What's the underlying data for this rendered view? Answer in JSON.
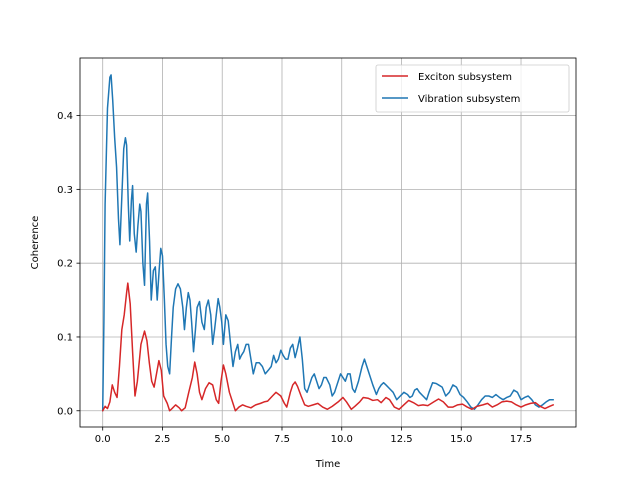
{
  "chart_data": {
    "type": "line",
    "title": "",
    "xlabel": "Time",
    "ylabel": "Coherence",
    "xlim": [
      -0.95,
      19.8
    ],
    "ylim": [
      -0.022,
      0.478
    ],
    "xticks": [
      0.0,
      2.5,
      5.0,
      7.5,
      10.0,
      12.5,
      15.0,
      17.5
    ],
    "xtick_labels": [
      "0.0",
      "2.5",
      "5.0",
      "7.5",
      "10.0",
      "12.5",
      "15.0",
      "17.5"
    ],
    "yticks": [
      0.0,
      0.1,
      0.2,
      0.3,
      0.4
    ],
    "ytick_labels": [
      "0.0",
      "0.1",
      "0.2",
      "0.3",
      "0.4"
    ],
    "grid": true,
    "legend_position": "top-right",
    "series": [
      {
        "name": "Exciton subsystem",
        "color": "#d62728",
        "points": [
          [
            0.0,
            0.0
          ],
          [
            0.1,
            0.006
          ],
          [
            0.2,
            0.003
          ],
          [
            0.3,
            0.012
          ],
          [
            0.4,
            0.035
          ],
          [
            0.5,
            0.025
          ],
          [
            0.6,
            0.018
          ],
          [
            0.7,
            0.06
          ],
          [
            0.8,
            0.11
          ],
          [
            0.9,
            0.13
          ],
          [
            1.0,
            0.16
          ],
          [
            1.05,
            0.173
          ],
          [
            1.15,
            0.145
          ],
          [
            1.25,
            0.08
          ],
          [
            1.35,
            0.02
          ],
          [
            1.45,
            0.04
          ],
          [
            1.6,
            0.09
          ],
          [
            1.75,
            0.108
          ],
          [
            1.85,
            0.095
          ],
          [
            1.95,
            0.065
          ],
          [
            2.05,
            0.04
          ],
          [
            2.15,
            0.032
          ],
          [
            2.25,
            0.05
          ],
          [
            2.35,
            0.068
          ],
          [
            2.45,
            0.055
          ],
          [
            2.55,
            0.02
          ],
          [
            2.7,
            0.01
          ],
          [
            2.8,
            0.0
          ],
          [
            2.9,
            0.003
          ],
          [
            3.05,
            0.008
          ],
          [
            3.2,
            0.004
          ],
          [
            3.3,
            0.0
          ],
          [
            3.45,
            0.004
          ],
          [
            3.6,
            0.025
          ],
          [
            3.75,
            0.045
          ],
          [
            3.85,
            0.066
          ],
          [
            3.95,
            0.05
          ],
          [
            4.05,
            0.025
          ],
          [
            4.15,
            0.015
          ],
          [
            4.3,
            0.03
          ],
          [
            4.45,
            0.038
          ],
          [
            4.6,
            0.035
          ],
          [
            4.75,
            0.015
          ],
          [
            4.85,
            0.01
          ],
          [
            4.95,
            0.04
          ],
          [
            5.05,
            0.062
          ],
          [
            5.15,
            0.05
          ],
          [
            5.3,
            0.025
          ],
          [
            5.45,
            0.01
          ],
          [
            5.55,
            0.0
          ],
          [
            5.7,
            0.005
          ],
          [
            5.85,
            0.008
          ],
          [
            6.0,
            0.006
          ],
          [
            6.2,
            0.004
          ],
          [
            6.4,
            0.008
          ],
          [
            6.6,
            0.01
          ],
          [
            6.75,
            0.012
          ],
          [
            6.9,
            0.013
          ],
          [
            7.1,
            0.02
          ],
          [
            7.25,
            0.025
          ],
          [
            7.45,
            0.02
          ],
          [
            7.6,
            0.01
          ],
          [
            7.7,
            0.005
          ],
          [
            7.85,
            0.025
          ],
          [
            7.95,
            0.035
          ],
          [
            8.05,
            0.039
          ],
          [
            8.15,
            0.033
          ],
          [
            8.3,
            0.02
          ],
          [
            8.45,
            0.008
          ],
          [
            8.6,
            0.006
          ],
          [
            8.8,
            0.008
          ],
          [
            9.0,
            0.01
          ],
          [
            9.2,
            0.005
          ],
          [
            9.4,
            0.002
          ],
          [
            9.6,
            0.006
          ],
          [
            9.85,
            0.012
          ],
          [
            10.05,
            0.018
          ],
          [
            10.2,
            0.012
          ],
          [
            10.4,
            0.002
          ],
          [
            10.55,
            0.006
          ],
          [
            10.75,
            0.012
          ],
          [
            10.9,
            0.018
          ],
          [
            11.1,
            0.017
          ],
          [
            11.3,
            0.014
          ],
          [
            11.5,
            0.015
          ],
          [
            11.65,
            0.011
          ],
          [
            11.85,
            0.018
          ],
          [
            12.0,
            0.015
          ],
          [
            12.2,
            0.005
          ],
          [
            12.4,
            0.002
          ],
          [
            12.6,
            0.008
          ],
          [
            12.8,
            0.014
          ],
          [
            13.0,
            0.011
          ],
          [
            13.2,
            0.007
          ],
          [
            13.4,
            0.008
          ],
          [
            13.6,
            0.007
          ],
          [
            13.85,
            0.012
          ],
          [
            14.05,
            0.016
          ],
          [
            14.25,
            0.012
          ],
          [
            14.45,
            0.005
          ],
          [
            14.65,
            0.005
          ],
          [
            14.85,
            0.008
          ],
          [
            15.05,
            0.009
          ],
          [
            15.25,
            0.005
          ],
          [
            15.45,
            0.002
          ],
          [
            15.65,
            0.006
          ],
          [
            15.9,
            0.008
          ],
          [
            16.1,
            0.01
          ],
          [
            16.3,
            0.005
          ],
          [
            16.5,
            0.008
          ],
          [
            16.7,
            0.012
          ],
          [
            16.9,
            0.013
          ],
          [
            17.1,
            0.012
          ],
          [
            17.3,
            0.008
          ],
          [
            17.5,
            0.005
          ],
          [
            17.7,
            0.008
          ],
          [
            17.9,
            0.01
          ],
          [
            18.1,
            0.011
          ],
          [
            18.3,
            0.006
          ],
          [
            18.5,
            0.003
          ],
          [
            18.7,
            0.006
          ],
          [
            18.85,
            0.008
          ]
        ]
      },
      {
        "name": "Vibration subsystem",
        "color": "#1f77b4",
        "points": [
          [
            0.0,
            0.0
          ],
          [
            0.05,
            0.12
          ],
          [
            0.1,
            0.28
          ],
          [
            0.2,
            0.41
          ],
          [
            0.3,
            0.452
          ],
          [
            0.35,
            0.455
          ],
          [
            0.42,
            0.42
          ],
          [
            0.5,
            0.37
          ],
          [
            0.58,
            0.33
          ],
          [
            0.66,
            0.26
          ],
          [
            0.72,
            0.225
          ],
          [
            0.8,
            0.29
          ],
          [
            0.88,
            0.355
          ],
          [
            0.95,
            0.37
          ],
          [
            1.0,
            0.36
          ],
          [
            1.07,
            0.28
          ],
          [
            1.13,
            0.23
          ],
          [
            1.2,
            0.285
          ],
          [
            1.25,
            0.305
          ],
          [
            1.32,
            0.24
          ],
          [
            1.4,
            0.215
          ],
          [
            1.47,
            0.25
          ],
          [
            1.55,
            0.28
          ],
          [
            1.6,
            0.27
          ],
          [
            1.68,
            0.2
          ],
          [
            1.75,
            0.17
          ],
          [
            1.83,
            0.28
          ],
          [
            1.88,
            0.295
          ],
          [
            1.96,
            0.23
          ],
          [
            2.03,
            0.15
          ],
          [
            2.12,
            0.19
          ],
          [
            2.2,
            0.195
          ],
          [
            2.28,
            0.15
          ],
          [
            2.36,
            0.19
          ],
          [
            2.43,
            0.22
          ],
          [
            2.5,
            0.21
          ],
          [
            2.58,
            0.15
          ],
          [
            2.65,
            0.09
          ],
          [
            2.72,
            0.06
          ],
          [
            2.8,
            0.05
          ],
          [
            2.88,
            0.1
          ],
          [
            2.95,
            0.14
          ],
          [
            3.05,
            0.165
          ],
          [
            3.15,
            0.172
          ],
          [
            3.25,
            0.165
          ],
          [
            3.35,
            0.14
          ],
          [
            3.42,
            0.11
          ],
          [
            3.5,
            0.14
          ],
          [
            3.58,
            0.16
          ],
          [
            3.65,
            0.15
          ],
          [
            3.72,
            0.12
          ],
          [
            3.8,
            0.08
          ],
          [
            3.88,
            0.11
          ],
          [
            3.95,
            0.14
          ],
          [
            4.05,
            0.148
          ],
          [
            4.15,
            0.12
          ],
          [
            4.25,
            0.11
          ],
          [
            4.33,
            0.14
          ],
          [
            4.42,
            0.15
          ],
          [
            4.52,
            0.13
          ],
          [
            4.6,
            0.09
          ],
          [
            4.68,
            0.11
          ],
          [
            4.75,
            0.13
          ],
          [
            4.83,
            0.152
          ],
          [
            4.9,
            0.14
          ],
          [
            4.98,
            0.12
          ],
          [
            5.05,
            0.09
          ],
          [
            5.15,
            0.13
          ],
          [
            5.25,
            0.122
          ],
          [
            5.35,
            0.09
          ],
          [
            5.45,
            0.06
          ],
          [
            5.55,
            0.08
          ],
          [
            5.65,
            0.09
          ],
          [
            5.73,
            0.07
          ],
          [
            5.8,
            0.075
          ],
          [
            5.9,
            0.08
          ],
          [
            6.0,
            0.09
          ],
          [
            6.1,
            0.09
          ],
          [
            6.2,
            0.07
          ],
          [
            6.3,
            0.05
          ],
          [
            6.42,
            0.065
          ],
          [
            6.55,
            0.065
          ],
          [
            6.68,
            0.06
          ],
          [
            6.8,
            0.05
          ],
          [
            6.93,
            0.055
          ],
          [
            7.05,
            0.06
          ],
          [
            7.15,
            0.075
          ],
          [
            7.25,
            0.065
          ],
          [
            7.35,
            0.07
          ],
          [
            7.45,
            0.082
          ],
          [
            7.55,
            0.075
          ],
          [
            7.65,
            0.07
          ],
          [
            7.75,
            0.07
          ],
          [
            7.85,
            0.085
          ],
          [
            7.95,
            0.09
          ],
          [
            8.05,
            0.072
          ],
          [
            8.15,
            0.085
          ],
          [
            8.25,
            0.1
          ],
          [
            8.35,
            0.07
          ],
          [
            8.45,
            0.03
          ],
          [
            8.55,
            0.025
          ],
          [
            8.65,
            0.035
          ],
          [
            8.75,
            0.045
          ],
          [
            8.85,
            0.05
          ],
          [
            8.95,
            0.04
          ],
          [
            9.05,
            0.03
          ],
          [
            9.15,
            0.035
          ],
          [
            9.25,
            0.045
          ],
          [
            9.35,
            0.045
          ],
          [
            9.5,
            0.035
          ],
          [
            9.6,
            0.02
          ],
          [
            9.7,
            0.025
          ],
          [
            9.85,
            0.04
          ],
          [
            9.95,
            0.05
          ],
          [
            10.05,
            0.045
          ],
          [
            10.15,
            0.04
          ],
          [
            10.25,
            0.05
          ],
          [
            10.35,
            0.05
          ],
          [
            10.45,
            0.03
          ],
          [
            10.55,
            0.025
          ],
          [
            10.7,
            0.04
          ],
          [
            10.85,
            0.06
          ],
          [
            10.95,
            0.07
          ],
          [
            11.05,
            0.06
          ],
          [
            11.15,
            0.05
          ],
          [
            11.3,
            0.035
          ],
          [
            11.45,
            0.022
          ],
          [
            11.55,
            0.03
          ],
          [
            11.65,
            0.035
          ],
          [
            11.75,
            0.038
          ],
          [
            11.85,
            0.035
          ],
          [
            12.0,
            0.03
          ],
          [
            12.15,
            0.025
          ],
          [
            12.3,
            0.015
          ],
          [
            12.45,
            0.02
          ],
          [
            12.6,
            0.025
          ],
          [
            12.75,
            0.022
          ],
          [
            12.85,
            0.018
          ],
          [
            12.95,
            0.02
          ],
          [
            13.05,
            0.028
          ],
          [
            13.15,
            0.03
          ],
          [
            13.25,
            0.025
          ],
          [
            13.4,
            0.02
          ],
          [
            13.55,
            0.015
          ],
          [
            13.65,
            0.025
          ],
          [
            13.8,
            0.038
          ],
          [
            13.95,
            0.037
          ],
          [
            14.05,
            0.035
          ],
          [
            14.2,
            0.032
          ],
          [
            14.35,
            0.02
          ],
          [
            14.5,
            0.025
          ],
          [
            14.65,
            0.035
          ],
          [
            14.8,
            0.032
          ],
          [
            14.95,
            0.022
          ],
          [
            15.1,
            0.018
          ],
          [
            15.25,
            0.012
          ],
          [
            15.4,
            0.005
          ],
          [
            15.55,
            0.002
          ],
          [
            15.7,
            0.008
          ],
          [
            15.85,
            0.015
          ],
          [
            16.0,
            0.02
          ],
          [
            16.15,
            0.02
          ],
          [
            16.3,
            0.018
          ],
          [
            16.45,
            0.022
          ],
          [
            16.6,
            0.018
          ],
          [
            16.75,
            0.015
          ],
          [
            16.9,
            0.018
          ],
          [
            17.05,
            0.02
          ],
          [
            17.2,
            0.028
          ],
          [
            17.35,
            0.025
          ],
          [
            17.5,
            0.015
          ],
          [
            17.65,
            0.018
          ],
          [
            17.8,
            0.02
          ],
          [
            17.95,
            0.015
          ],
          [
            18.1,
            0.008
          ],
          [
            18.25,
            0.005
          ],
          [
            18.4,
            0.008
          ],
          [
            18.55,
            0.012
          ],
          [
            18.7,
            0.015
          ],
          [
            18.85,
            0.015
          ]
        ]
      }
    ]
  }
}
